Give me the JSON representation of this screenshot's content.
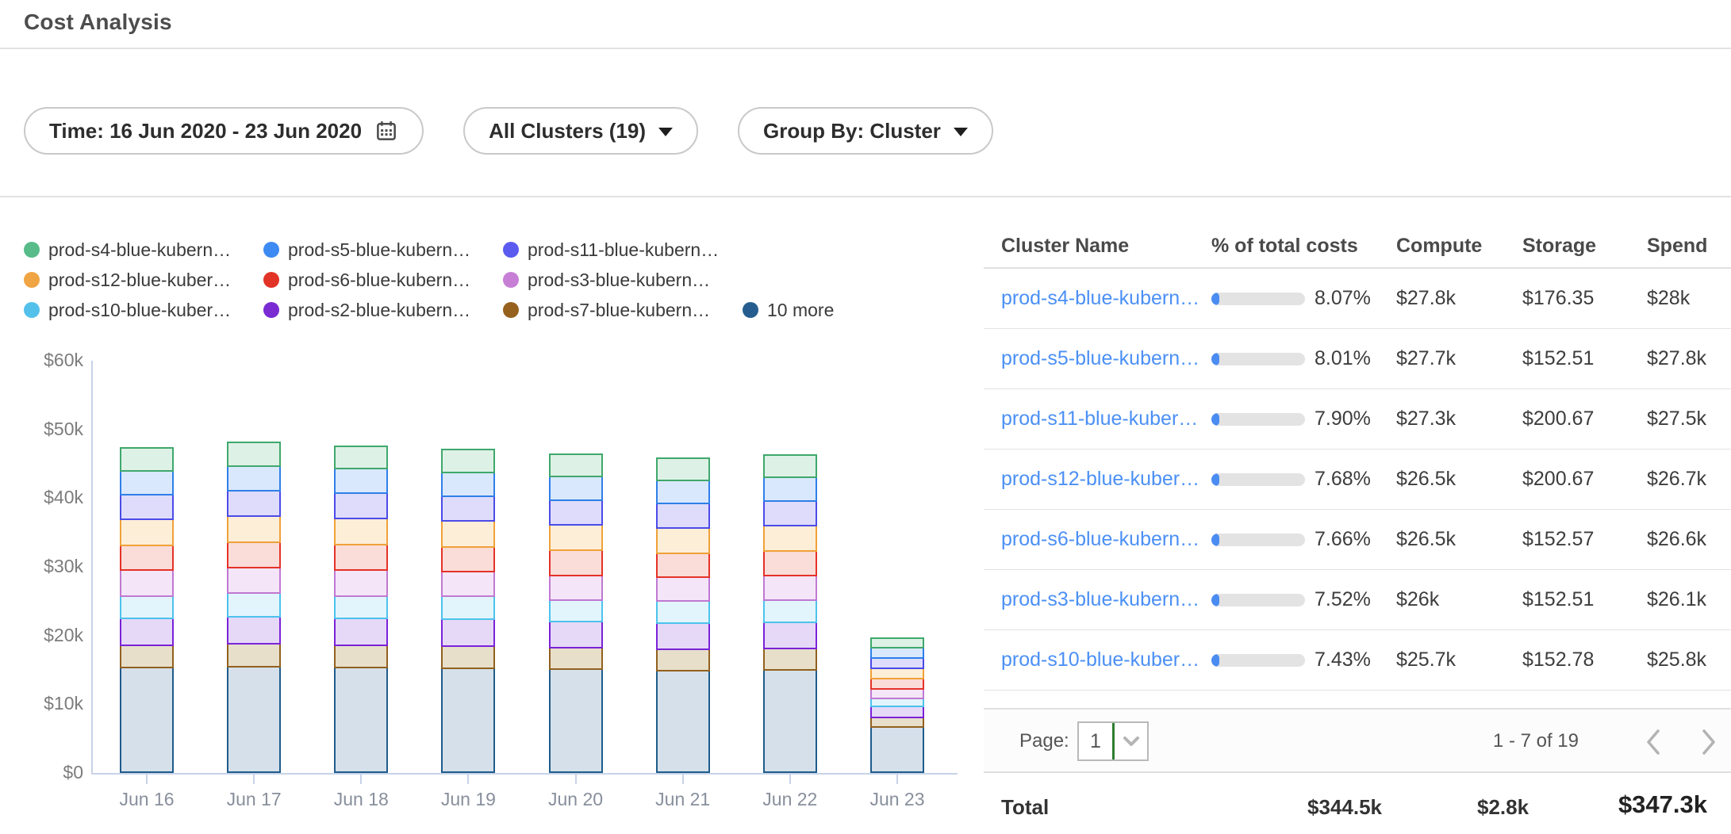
{
  "header": {
    "title": "Cost Analysis"
  },
  "filters": {
    "time_label": "Time: 16 Jun 2020 - 23 Jun 2020",
    "clusters_label": "All Clusters (19)",
    "group_by_label": "Group By: Cluster"
  },
  "legend": {
    "items": [
      {
        "label": "prod-s4-blue-kubern…",
        "color": "#57bb8a"
      },
      {
        "label": "prod-s5-blue-kubern…",
        "color": "#3d8af2"
      },
      {
        "label": "prod-s11-blue-kubern…",
        "color": "#5b5bf0"
      },
      {
        "label": "prod-s12-blue-kuber…",
        "color": "#f0a443"
      },
      {
        "label": "prod-s6-blue-kubern…",
        "color": "#e23327"
      },
      {
        "label": "prod-s3-blue-kubern…",
        "color": "#c77fd6"
      },
      {
        "label": "prod-s10-blue-kuber…",
        "color": "#54c1ea"
      },
      {
        "label": "prod-s2-blue-kubern…",
        "color": "#7a2bd1"
      },
      {
        "label": "prod-s7-blue-kubern…",
        "color": "#96611d"
      },
      {
        "label": "10 more",
        "color": "#255e8e"
      }
    ]
  },
  "chart_data": {
    "type": "bar",
    "stacked": true,
    "title": "",
    "xlabel": "",
    "ylabel": "",
    "ylim": [
      0,
      60000
    ],
    "yticks": [
      {
        "value": 0,
        "label": "$0"
      },
      {
        "value": 10,
        "label": "$10k"
      },
      {
        "value": 20,
        "label": "$20k"
      },
      {
        "value": 30,
        "label": "$30k"
      },
      {
        "value": 40,
        "label": "$40k"
      },
      {
        "value": 50,
        "label": "$50k"
      },
      {
        "value": 60,
        "label": "$60k"
      }
    ],
    "categories": [
      "Jun 16",
      "Jun 17",
      "Jun 18",
      "Jun 19",
      "Jun 20",
      "Jun 21",
      "Jun 22",
      "Jun 23"
    ],
    "unit": "$k per day, stacked bottom-to-top",
    "series": [
      {
        "name": "10 more",
        "border": "#1f5c8b",
        "fill": "#d5e0ea",
        "values": [
          15.5,
          15.6,
          15.5,
          15.4,
          15.2,
          15.0,
          15.1,
          6.8
        ]
      },
      {
        "name": "prod-s7-blue-kubern…",
        "border": "#92601e",
        "fill": "#e7dfca",
        "values": [
          3.2,
          3.3,
          3.2,
          3.2,
          3.1,
          3.1,
          3.1,
          1.4
        ]
      },
      {
        "name": "prod-s2-blue-kubern…",
        "border": "#7a22d8",
        "fill": "#e6d8f7",
        "values": [
          3.9,
          4.0,
          3.9,
          3.9,
          3.8,
          3.8,
          3.8,
          1.6
        ]
      },
      {
        "name": "prod-s10-blue-kuber…",
        "border": "#4cc2ec",
        "fill": "#e2f5fc",
        "values": [
          3.3,
          3.4,
          3.3,
          3.3,
          3.2,
          3.2,
          3.3,
          1.2
        ]
      },
      {
        "name": "prod-s3-blue-kubern…",
        "border": "#c078d2",
        "fill": "#f4e6f8",
        "values": [
          3.7,
          3.7,
          3.7,
          3.6,
          3.6,
          3.5,
          3.5,
          1.4
        ]
      },
      {
        "name": "prod-s6-blue-kubern…",
        "border": "#e53228",
        "fill": "#fadcd8",
        "values": [
          3.6,
          3.7,
          3.7,
          3.6,
          3.6,
          3.5,
          3.6,
          1.5
        ]
      },
      {
        "name": "prod-s12-blue-kuber…",
        "border": "#f0a138",
        "fill": "#fdeed8",
        "values": [
          3.8,
          3.8,
          3.8,
          3.8,
          3.7,
          3.7,
          3.7,
          1.4
        ]
      },
      {
        "name": "prod-s11-blue-kubern…",
        "border": "#4b4be8",
        "fill": "#dedcfa",
        "values": [
          3.6,
          3.7,
          3.7,
          3.6,
          3.6,
          3.5,
          3.6,
          1.5
        ]
      },
      {
        "name": "prod-s5-blue-kubern…",
        "border": "#2f7fe8",
        "fill": "#d9e8fc",
        "values": [
          3.5,
          3.6,
          3.6,
          3.5,
          3.5,
          3.4,
          3.5,
          1.6
        ]
      },
      {
        "name": "prod-s4-blue-kubern…",
        "border": "#3fa86c",
        "fill": "#def1e6",
        "values": [
          3.3,
          3.4,
          3.3,
          3.3,
          3.2,
          3.2,
          3.2,
          1.3
        ]
      }
    ],
    "legend_position": "top-left",
    "grid": false
  },
  "table": {
    "columns": [
      "Cluster Name",
      "% of total costs",
      "Compute",
      "Storage",
      "Spend"
    ],
    "rows": [
      {
        "name": "prod-s4-blue-kubern…",
        "pct": "8.07%",
        "pct_value": 8.07,
        "compute": "$27.8k",
        "storage": "$176.35",
        "spend": "$28k"
      },
      {
        "name": "prod-s5-blue-kubern…",
        "pct": "8.01%",
        "pct_value": 8.01,
        "compute": "$27.7k",
        "storage": "$152.51",
        "spend": "$27.8k"
      },
      {
        "name": "prod-s11-blue-kuber…",
        "pct": "7.90%",
        "pct_value": 7.9,
        "compute": "$27.3k",
        "storage": "$200.67",
        "spend": "$27.5k"
      },
      {
        "name": "prod-s12-blue-kuber…",
        "pct": "7.68%",
        "pct_value": 7.68,
        "compute": "$26.5k",
        "storage": "$200.67",
        "spend": "$26.7k"
      },
      {
        "name": "prod-s6-blue-kubern…",
        "pct": "7.66%",
        "pct_value": 7.66,
        "compute": "$26.5k",
        "storage": "$152.57",
        "spend": "$26.6k"
      },
      {
        "name": "prod-s3-blue-kubern…",
        "pct": "7.52%",
        "pct_value": 7.52,
        "compute": "$26k",
        "storage": "$152.51",
        "spend": "$26.1k"
      },
      {
        "name": "prod-s10-blue-kuber…",
        "pct": "7.43%",
        "pct_value": 7.43,
        "compute": "$25.7k",
        "storage": "$152.78",
        "spend": "$25.8k"
      }
    ]
  },
  "pagination": {
    "page_label": "Page:",
    "page_value": "1",
    "range": "1 - 7 of 19"
  },
  "totals": {
    "label": "Total",
    "compute": "$344.5k",
    "storage": "$2.8k",
    "spend": "$347.3k"
  },
  "colors": {
    "link": "#4b90f5",
    "pct_fill": "#4a8cf2",
    "axis": "#c8d3e8",
    "divider": "#e2e2e2",
    "select_focus_green": "#2d7d2f"
  }
}
